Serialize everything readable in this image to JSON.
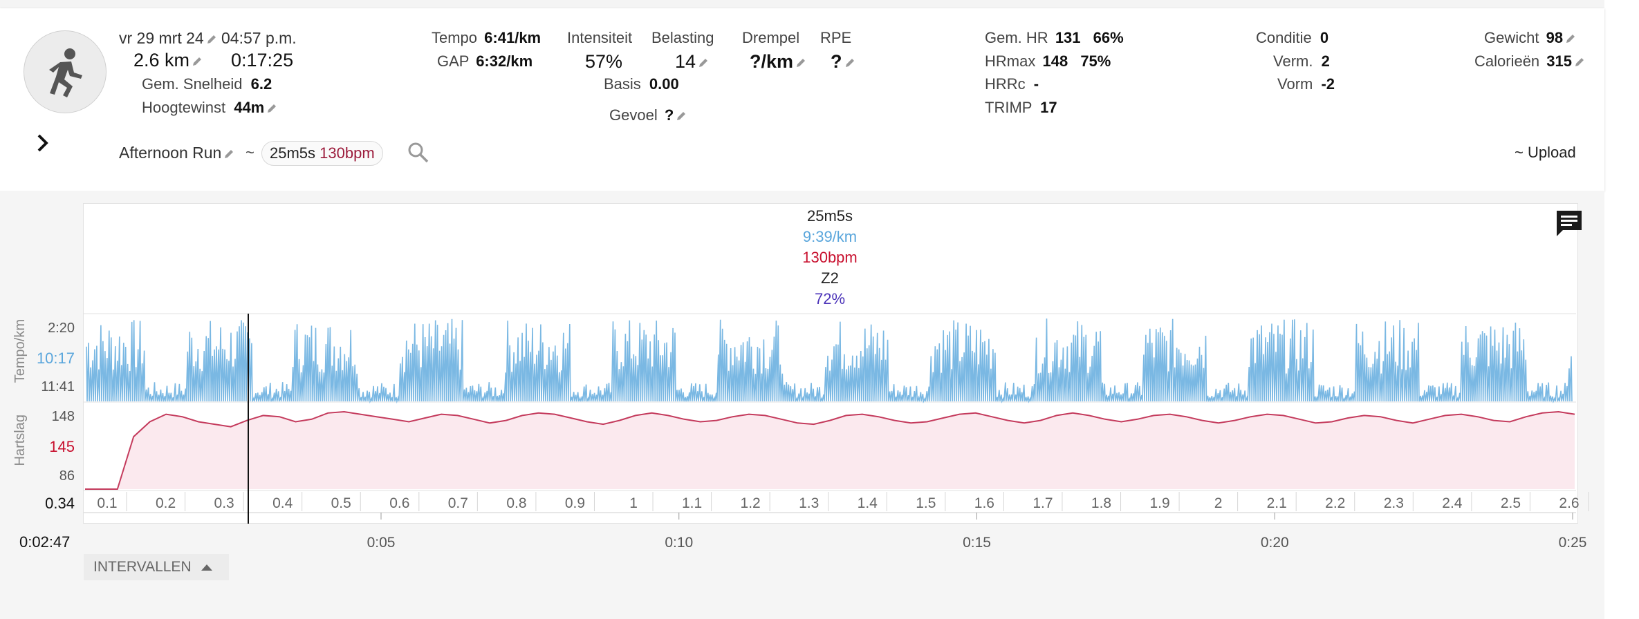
{
  "header": {
    "date": "vr 29 mrt 24",
    "time": "04:57 p.m.",
    "distance": "2.6 km",
    "duration": "0:17:25",
    "avg_speed_label": "Gem. Snelheid",
    "avg_speed_value": "6.2",
    "elevation_label": "Hoogtewinst",
    "elevation_value": "44m",
    "activity_name": "Afternoon Run",
    "tilde": "~",
    "chip_time": "25m5s",
    "chip_bpm": "130bpm",
    "upload": "~ Upload"
  },
  "stats": {
    "tempo_label": "Tempo",
    "tempo_value": "6:41/km",
    "gap_label": "GAP",
    "gap_value": "6:32/km",
    "intensity_label": "Intensiteit",
    "intensity_value": "57%",
    "load_label": "Belasting",
    "load_value": "14",
    "threshold_label": "Drempel",
    "threshold_value": "?/km",
    "rpe_label": "RPE",
    "rpe_value": "?",
    "basis_label": "Basis",
    "basis_value": "0.00",
    "feel_label": "Gevoel",
    "feel_value": "?",
    "avg_hr_label": "Gem. HR",
    "avg_hr_value": "131",
    "avg_hr_pct": "66%",
    "hrmax_label": "HRmax",
    "hrmax_value": "148",
    "hrmax_pct": "75%",
    "hrrc_label": "HRRc",
    "hrrc_value": "-",
    "trimp_label": "TRIMP",
    "trimp_value": "17",
    "condition_label": "Conditie",
    "condition_value": "0",
    "fatigue_label": "Verm.",
    "fatigue_value": "2",
    "form_label": "Vorm",
    "form_value": "-2",
    "weight_label": "Gewicht",
    "weight_value": "98",
    "calories_label": "Calorieën",
    "calories_value": "315"
  },
  "tooltip": {
    "time": "25m5s",
    "pace": "9:39/km",
    "hr": "130bpm",
    "zone": "Z2",
    "pct": "72%"
  },
  "chart_data": {
    "type": "line",
    "series": [
      {
        "name": "Tempo/km",
        "color": "#7ab8e3",
        "y_ticks": [
          "2:20",
          "10:17",
          "11:41"
        ]
      },
      {
        "name": "Hartslag",
        "color": "#c43a5c",
        "y_ticks": [
          "148",
          "145",
          "86"
        ]
      }
    ],
    "pace_axis_label": "Tempo/km",
    "hr_axis_label": "Hartslag",
    "pace_cursor_value": "10:17",
    "hr_cursor_value": "145",
    "hr_profile": [
      86,
      86,
      86,
      128,
      140,
      146,
      144,
      140,
      138,
      136,
      141,
      145,
      144,
      140,
      142,
      147,
      148,
      146,
      144,
      142,
      140,
      143,
      146,
      145,
      142,
      139,
      141,
      145,
      147,
      146,
      143,
      140,
      138,
      141,
      145,
      147,
      145,
      142,
      140,
      141,
      144,
      146,
      145,
      142,
      139,
      138,
      141,
      145,
      146,
      144,
      141,
      139,
      140,
      143,
      146,
      147,
      144,
      141,
      139,
      141,
      145,
      147,
      145,
      142,
      140,
      142,
      145,
      146,
      144,
      141,
      139,
      141,
      144,
      146,
      145,
      142,
      139,
      140,
      143,
      145,
      144,
      141,
      139,
      142,
      145,
      146,
      144,
      141,
      140,
      144,
      147,
      148,
      146
    ],
    "distance_ticks": [
      "0.1",
      "0.2",
      "0.3",
      "0.4",
      "0.5",
      "0.6",
      "0.7",
      "0.8",
      "0.9",
      "1",
      "1.1",
      "1.2",
      "1.3",
      "1.4",
      "1.5",
      "1.6",
      "1.7",
      "1.8",
      "1.9",
      "2",
      "2.1",
      "2.2",
      "2.3",
      "2.4",
      "2.5",
      "2.6"
    ],
    "cursor_distance": "0.34",
    "cursor_time": "0:02:47",
    "time_ticks": [
      "0:05",
      "0:10",
      "0:15",
      "0:20",
      "0:25"
    ]
  },
  "buttons": {
    "intervals": "INTERVALLEN"
  },
  "icons": {
    "activity": "running-person-icon",
    "expand": "chevron-right-icon",
    "search": "search-icon",
    "comment": "comment-icon",
    "edit": "pencil-icon",
    "collapse": "triangle-up-icon"
  }
}
